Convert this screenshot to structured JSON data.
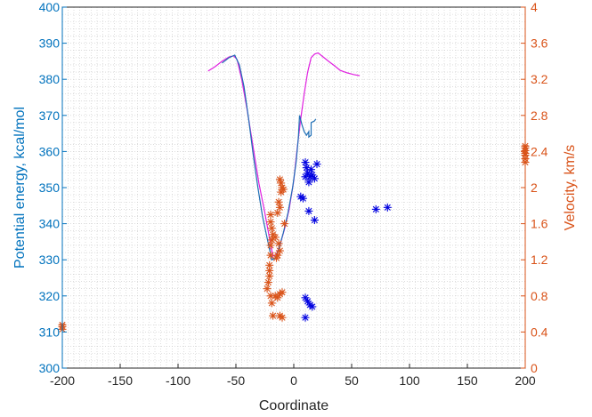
{
  "chart_data": {
    "type": "line+scatter",
    "title": "",
    "xlabel": "Coordinate",
    "ylabel_left": "Potential energy, kcal/mol",
    "ylabel_right": "Velocity, km/s",
    "xlim": [
      -200,
      200
    ],
    "ylim_left": [
      300,
      400
    ],
    "ylim_right": [
      0,
      4
    ],
    "x_ticks": [
      "-200",
      "-150",
      "-100",
      "-50",
      "0",
      "50",
      "100",
      "150",
      "200"
    ],
    "y_left_ticks": [
      "300",
      "310",
      "320",
      "330",
      "340",
      "350",
      "360",
      "370",
      "380",
      "390",
      "400"
    ],
    "y_right_ticks": [
      "0",
      "0.4",
      "0.8",
      "1.2",
      "1.6",
      "2",
      "2.4",
      "2.8",
      "3.2",
      "3.6",
      "4"
    ],
    "grid": "dotted minor grid",
    "colors": {
      "left_axis": "#0072BD",
      "right_axis": "#D95319",
      "magenta_line": "#E020E0",
      "blue_line": "#1f6fb5",
      "blue_star": "#0000E0",
      "orange_star": "#D95319",
      "grid": "#c8c8c8"
    },
    "series": [
      {
        "type": "line",
        "axis": "left",
        "color_key": "magenta_line",
        "points": [
          [
            -74,
            382.3
          ],
          [
            -68,
            383.5
          ],
          [
            -62,
            385.0
          ],
          [
            -56,
            386.2
          ],
          [
            -52,
            386.5
          ],
          [
            -49,
            385.5
          ],
          [
            -45,
            380.0
          ],
          [
            -40,
            371.0
          ],
          [
            -35,
            361.0
          ],
          [
            -30,
            351.0
          ],
          [
            -25,
            343.0
          ],
          [
            -21,
            336.0
          ],
          [
            -18,
            331.0
          ],
          [
            -15,
            331.5
          ],
          [
            -12,
            334.0
          ],
          [
            -8,
            338.5
          ],
          [
            -4,
            344.0
          ],
          [
            0,
            352.0
          ],
          [
            3,
            361.0
          ],
          [
            6,
            369.0
          ],
          [
            9,
            376.0
          ],
          [
            12,
            382.0
          ],
          [
            15,
            386.0
          ],
          [
            18,
            387.0
          ],
          [
            21,
            387.3
          ],
          [
            25,
            386.3
          ],
          [
            30,
            385.0
          ],
          [
            35,
            383.8
          ],
          [
            40,
            382.5
          ],
          [
            46,
            381.8
          ],
          [
            52,
            381.3
          ],
          [
            57,
            381.0
          ]
        ]
      },
      {
        "type": "line",
        "axis": "left",
        "color_key": "blue_line",
        "points": [
          [
            -62,
            384.5
          ],
          [
            -56,
            386.0
          ],
          [
            -51,
            386.7
          ],
          [
            -47,
            384.0
          ],
          [
            -43,
            378.0
          ],
          [
            -39,
            369.0
          ],
          [
            -35,
            359.0
          ],
          [
            -31,
            350.0
          ],
          [
            -27,
            342.0
          ],
          [
            -23,
            336.0
          ],
          [
            -19,
            330.0
          ],
          [
            -16,
            330.5
          ],
          [
            -13,
            333.0
          ],
          [
            -9,
            337.5
          ],
          [
            -5,
            343.0
          ],
          [
            -1,
            350.0
          ],
          [
            2,
            357.0
          ],
          [
            4,
            364.0
          ],
          [
            5,
            370.0
          ],
          [
            7,
            367.5
          ],
          [
            9,
            365.5
          ],
          [
            11,
            364.5
          ],
          [
            13,
            365.5
          ],
          [
            13,
            364.0
          ],
          [
            15,
            364.5
          ],
          [
            15,
            368.0
          ],
          [
            18,
            368.5
          ],
          [
            19,
            369.0
          ]
        ]
      },
      {
        "type": "scatter",
        "axis": "left",
        "color_key": "blue_star",
        "points": [
          [
            10,
            357
          ],
          [
            11,
            355.5
          ],
          [
            12,
            354
          ],
          [
            10,
            353
          ],
          [
            14,
            353
          ],
          [
            16,
            353.5
          ],
          [
            18,
            352.5
          ],
          [
            20,
            356.5
          ],
          [
            15,
            355
          ],
          [
            13,
            351.5
          ],
          [
            6,
            347.5
          ],
          [
            8,
            347
          ],
          [
            13,
            343.5
          ],
          [
            18,
            341
          ],
          [
            10,
            319.5
          ],
          [
            12,
            318.5
          ],
          [
            14,
            317.5
          ],
          [
            16,
            317
          ],
          [
            10,
            314
          ],
          [
            71,
            344
          ],
          [
            81,
            344.5
          ]
        ]
      },
      {
        "type": "scatter",
        "axis": "right",
        "color_key": "orange_star",
        "points": [
          [
            -200,
            0.46
          ],
          [
            -200,
            0.43
          ],
          [
            -200,
            0.48
          ],
          [
            -20,
            1.36
          ],
          [
            -20,
            1.25
          ],
          [
            -21,
            1.14
          ],
          [
            -21,
            1.08
          ],
          [
            -21,
            1.02
          ],
          [
            -22,
            0.95
          ],
          [
            -23,
            0.88
          ],
          [
            -20,
            0.8
          ],
          [
            -19,
            0.72
          ],
          [
            -20,
            1.7
          ],
          [
            -20,
            1.62
          ],
          [
            -19,
            1.55
          ],
          [
            -18,
            1.48
          ],
          [
            -19,
            1.42
          ],
          [
            -14,
            1.25
          ],
          [
            -15,
            1.22
          ],
          [
            -13,
            1.38
          ],
          [
            -12,
            1.3
          ],
          [
            -16,
            1.45
          ],
          [
            -12,
            1.78
          ],
          [
            -13,
            1.84
          ],
          [
            -14,
            1.72
          ],
          [
            -14,
            0.78
          ],
          [
            -12,
            0.82
          ],
          [
            -10,
            0.84
          ],
          [
            -16,
            0.8
          ],
          [
            -12,
            0.58
          ],
          [
            -10,
            0.56
          ],
          [
            -18,
            0.58
          ],
          [
            -11,
            2.05
          ],
          [
            -12,
            2.09
          ],
          [
            -10,
            2.0
          ],
          [
            -11,
            1.95
          ],
          [
            -9,
            1.98
          ],
          [
            -8,
            1.6
          ],
          [
            200,
            2.46
          ],
          [
            200,
            2.41
          ],
          [
            200,
            2.36
          ],
          [
            200,
            2.32
          ],
          [
            200,
            2.28
          ],
          [
            200,
            2.44
          ],
          [
            200,
            2.38
          ]
        ]
      }
    ]
  }
}
